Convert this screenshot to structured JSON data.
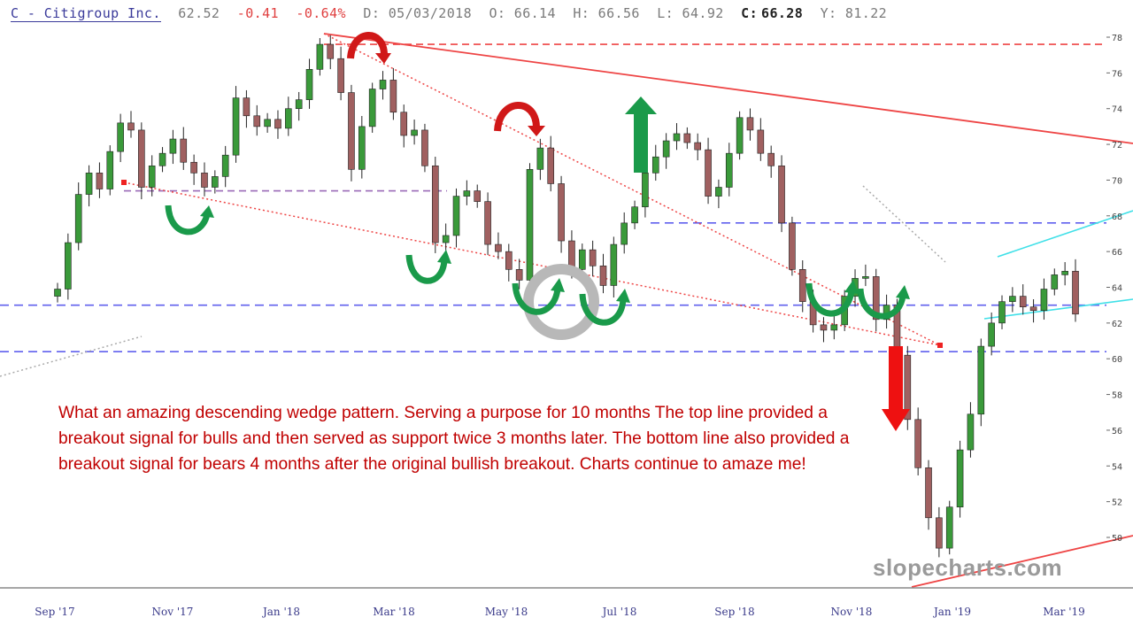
{
  "header": {
    "symbol": "C - Citigroup Inc.",
    "last": "62.52",
    "change": "-0.41",
    "change_pct": "-0.64%",
    "date": "D: 05/03/2018",
    "open": "O: 66.14",
    "high": "H: 66.56",
    "low": "L: 64.92",
    "close_label": "C:",
    "close": "66.28",
    "y": "Y: 81.22"
  },
  "annotation_text": "What an amazing descending wedge pattern. Serving a purpose for 10 months The top line provided a breakout signal for bulls and then served as support twice 3 months later. The bottom line also provided a breakout signal for bears 4 months after the original bullish breakout. Charts continue to amaze me!",
  "watermark": "slopecharts.com",
  "colors": {
    "up_candle": "#3a9a3a",
    "down_candle": "#a06060",
    "trend_line": "#ee4444",
    "dashed_blue": "#6060ee",
    "dashed_red": "#ee4444",
    "dashed_purple": "#9a6ab8",
    "cyan_line": "#40e0e8",
    "green_arrow": "#1a9a4a",
    "red_arrow": "#e81010"
  },
  "chart_data": {
    "type": "candlestick",
    "ylim": [
      48.5,
      78.5
    ],
    "yticks": [
      50,
      52,
      54,
      56,
      58,
      60,
      62,
      64,
      66,
      68,
      70,
      72,
      74,
      76,
      78
    ],
    "xticks": [
      "Sep '17",
      "Nov '17",
      "Jan '18",
      "Mar '18",
      "May '18",
      "Jul '18",
      "Sep '18",
      "Nov '18",
      "Jan '19",
      "Mar '19"
    ],
    "grid": false,
    "series": [
      {
        "values": [
          63.9,
          66.5,
          69.2,
          70.4,
          69.5,
          71.6,
          73.2,
          72.8,
          69.6,
          70.8,
          71.5,
          72.3,
          71.0,
          70.4,
          69.6,
          70.2,
          71.4,
          74.6,
          73.6,
          73.0,
          73.4,
          72.9,
          74.0,
          74.5,
          76.2,
          77.6,
          76.8,
          74.9,
          70.6,
          73.0,
          75.1,
          75.6,
          73.8,
          72.5,
          72.8,
          70.8,
          66.5,
          66.9,
          69.1,
          69.4,
          68.8,
          66.4,
          66.0,
          65.0,
          64.4,
          70.6,
          71.8,
          69.8,
          66.6,
          65.0,
          66.1,
          65.2,
          64.1,
          66.4,
          67.6,
          68.5,
          70.4,
          71.3,
          72.2,
          72.6,
          72.1,
          71.7,
          69.1,
          69.6,
          71.5,
          73.5,
          72.8,
          71.5,
          70.8,
          67.6,
          65.0,
          63.2,
          61.9,
          61.6,
          61.9,
          63.5,
          64.5,
          64.6,
          62.2,
          63.0,
          60.2,
          56.6,
          53.9,
          51.1,
          49.4,
          51.7,
          54.9,
          56.9,
          60.7,
          62.0,
          63.2,
          63.5,
          62.9,
          62.7,
          63.9,
          64.7,
          64.9,
          62.5
        ]
      }
    ],
    "levels": [
      63.0,
      60.4,
      67.6,
      69.4,
      77.6
    ]
  }
}
